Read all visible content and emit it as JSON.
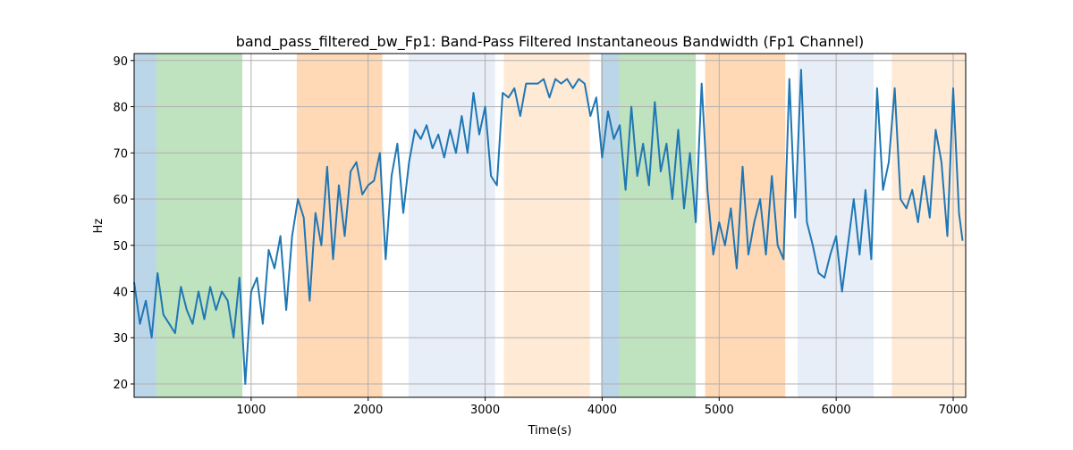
{
  "chart_data": {
    "type": "line",
    "title": "band_pass_filtered_bw_Fp1: Band-Pass Filtered Instantaneous Bandwidth (Fp1 Channel)",
    "xlabel": "Time(s)",
    "ylabel": "Hz",
    "xlim": [
      0,
      7107
    ],
    "ylim": [
      17.1,
      91.5
    ],
    "grid": true,
    "xticks": [
      1000,
      2000,
      3000,
      4000,
      5000,
      6000,
      7000
    ],
    "yticks": [
      20,
      30,
      40,
      50,
      60,
      70,
      80,
      90
    ],
    "line_color": "#1f77b4",
    "spans": [
      {
        "start": 0,
        "end": 190,
        "color": "#1f77b4",
        "alpha": 0.3
      },
      {
        "start": 190,
        "end": 925,
        "color": "#2ca02c",
        "alpha": 0.3
      },
      {
        "start": 1390,
        "end": 2120,
        "color": "#ff7f0e",
        "alpha": 0.3
      },
      {
        "start": 2345,
        "end": 3085,
        "color": "#aec7e8",
        "alpha": 0.3
      },
      {
        "start": 3160,
        "end": 3895,
        "color": "#ffbb78",
        "alpha": 0.3
      },
      {
        "start": 3990,
        "end": 4145,
        "color": "#1f77b4",
        "alpha": 0.3
      },
      {
        "start": 4145,
        "end": 4800,
        "color": "#2ca02c",
        "alpha": 0.3
      },
      {
        "start": 4880,
        "end": 5565,
        "color": "#ff7f0e",
        "alpha": 0.3
      },
      {
        "start": 5670,
        "end": 6320,
        "color": "#aec7e8",
        "alpha": 0.3
      },
      {
        "start": 6475,
        "end": 7107,
        "color": "#ffbb78",
        "alpha": 0.3
      }
    ],
    "x": [
      0,
      50,
      100,
      150,
      200,
      250,
      300,
      350,
      400,
      450,
      500,
      550,
      600,
      650,
      700,
      750,
      800,
      850,
      900,
      950,
      1000,
      1050,
      1100,
      1150,
      1200,
      1250,
      1300,
      1350,
      1400,
      1450,
      1500,
      1550,
      1600,
      1650,
      1700,
      1750,
      1800,
      1850,
      1900,
      1950,
      2000,
      2050,
      2100,
      2150,
      2200,
      2250,
      2300,
      2350,
      2400,
      2450,
      2500,
      2550,
      2600,
      2650,
      2700,
      2750,
      2800,
      2850,
      2900,
      2950,
      3000,
      3050,
      3100,
      3150,
      3200,
      3250,
      3300,
      3350,
      3400,
      3450,
      3500,
      3550,
      3600,
      3650,
      3700,
      3750,
      3800,
      3850,
      3900,
      3950,
      4000,
      4050,
      4100,
      4150,
      4200,
      4250,
      4300,
      4350,
      4400,
      4450,
      4500,
      4550,
      4600,
      4650,
      4700,
      4750,
      4800,
      4850,
      4900,
      4950,
      5000,
      5050,
      5100,
      5150,
      5200,
      5250,
      5300,
      5350,
      5400,
      5450,
      5500,
      5550,
      5600,
      5650,
      5700,
      5750,
      5800,
      5850,
      5900,
      5950,
      6000,
      6050,
      6100,
      6150,
      6200,
      6250,
      6300,
      6350,
      6400,
      6450,
      6500,
      6550,
      6600,
      6650,
      6700,
      6750,
      6800,
      6850,
      6900,
      6950,
      7000,
      7050,
      7080
    ],
    "y": [
      42,
      33,
      38,
      30,
      44,
      35,
      33,
      31,
      41,
      36,
      33,
      40,
      34,
      41,
      36,
      40,
      38,
      30,
      43,
      20,
      40,
      43,
      33,
      49,
      45,
      52,
      36,
      52,
      60,
      56,
      38,
      57,
      50,
      67,
      47,
      63,
      52,
      66,
      68,
      61,
      63,
      64,
      70,
      47,
      65,
      72,
      57,
      68,
      75,
      73,
      76,
      71,
      74,
      69,
      75,
      70,
      78,
      70,
      83,
      74,
      80,
      65,
      63,
      83,
      82,
      84,
      78,
      85,
      85,
      85,
      86,
      82,
      86,
      85,
      86,
      84,
      86,
      85,
      78,
      82,
      69,
      79,
      73,
      76,
      62,
      80,
      65,
      72,
      63,
      81,
      66,
      72,
      60,
      75,
      58,
      70,
      55,
      85,
      62,
      48,
      55,
      50,
      58,
      45,
      67,
      48,
      55,
      60,
      48,
      65,
      50,
      47,
      86,
      56,
      88,
      55,
      50,
      44,
      43,
      48,
      52,
      40,
      50,
      60,
      48,
      62,
      47,
      84,
      62,
      68,
      84,
      60,
      58,
      62,
      55,
      65,
      56,
      75,
      68,
      52,
      84,
      57,
      51
    ]
  }
}
